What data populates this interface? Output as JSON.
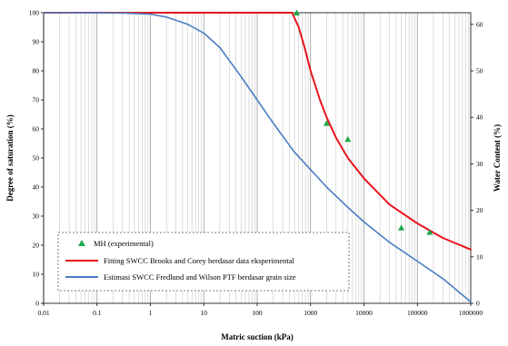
{
  "chart_data": {
    "type": "line",
    "xlabel": "Matric suction (kPa)",
    "ylabel": "Degree of saturation (%)",
    "y2label": "Water Content (%)",
    "xscale": "log",
    "xlim": [
      0.01,
      1000000
    ],
    "ylim": [
      0,
      100
    ],
    "y2lim": [
      0,
      62.5
    ],
    "xticks": [
      "0.01",
      "0.1",
      "1",
      "10",
      "100",
      "1000",
      "10000",
      "100000",
      "1000000"
    ],
    "yticks": [
      "0",
      "10",
      "20",
      "30",
      "40",
      "50",
      "60",
      "70",
      "80",
      "90",
      "100"
    ],
    "y2ticks": [
      "0",
      "10",
      "20",
      "30",
      "40",
      "50",
      "60"
    ],
    "grid": "vertical-log",
    "legend_position": "bottom-left",
    "series": [
      {
        "name": "MH (experimental)",
        "kind": "scatter",
        "marker": "triangle",
        "color": "#22a84a",
        "points": [
          {
            "x": 550,
            "y": 100
          },
          {
            "x": 2000,
            "y": 62
          },
          {
            "x": 5000,
            "y": 56.5
          },
          {
            "x": 50000,
            "y": 26
          },
          {
            "x": 170000,
            "y": 24.5
          }
        ]
      },
      {
        "name": "Fitting SWCC Brooks and Corey berdasar data eksperimental",
        "kind": "line",
        "color": "#e8141b",
        "points": [
          {
            "x": 0.01,
            "y": 100
          },
          {
            "x": 450,
            "y": 100
          },
          {
            "x": 520,
            "y": 97.5
          },
          {
            "x": 600,
            "y": 95
          },
          {
            "x": 800,
            "y": 87
          },
          {
            "x": 1000,
            "y": 80
          },
          {
            "x": 1500,
            "y": 70
          },
          {
            "x": 2000,
            "y": 64
          },
          {
            "x": 3000,
            "y": 57
          },
          {
            "x": 5000,
            "y": 50
          },
          {
            "x": 10000,
            "y": 43
          },
          {
            "x": 30000,
            "y": 34
          },
          {
            "x": 100000,
            "y": 27.5
          },
          {
            "x": 300000,
            "y": 22.5
          },
          {
            "x": 1000000,
            "y": 18.5
          }
        ]
      },
      {
        "name": "Estimasi SWCC Fredlund and Wilson PTF berdasar grain size",
        "kind": "line",
        "color": "#4a7ec2",
        "points": [
          {
            "x": 0.01,
            "y": 100
          },
          {
            "x": 0.3,
            "y": 99.9
          },
          {
            "x": 1,
            "y": 99.5
          },
          {
            "x": 2,
            "y": 98.5
          },
          {
            "x": 5,
            "y": 96
          },
          {
            "x": 10,
            "y": 93
          },
          {
            "x": 20,
            "y": 88
          },
          {
            "x": 50,
            "y": 78
          },
          {
            "x": 100,
            "y": 70
          },
          {
            "x": 200,
            "y": 62
          },
          {
            "x": 500,
            "y": 52
          },
          {
            "x": 1000,
            "y": 46
          },
          {
            "x": 2000,
            "y": 40
          },
          {
            "x": 5000,
            "y": 33
          },
          {
            "x": 10000,
            "y": 28
          },
          {
            "x": 30000,
            "y": 21
          },
          {
            "x": 100000,
            "y": 14.5
          },
          {
            "x": 300000,
            "y": 8.5
          },
          {
            "x": 1000000,
            "y": 0.5
          }
        ]
      }
    ]
  }
}
